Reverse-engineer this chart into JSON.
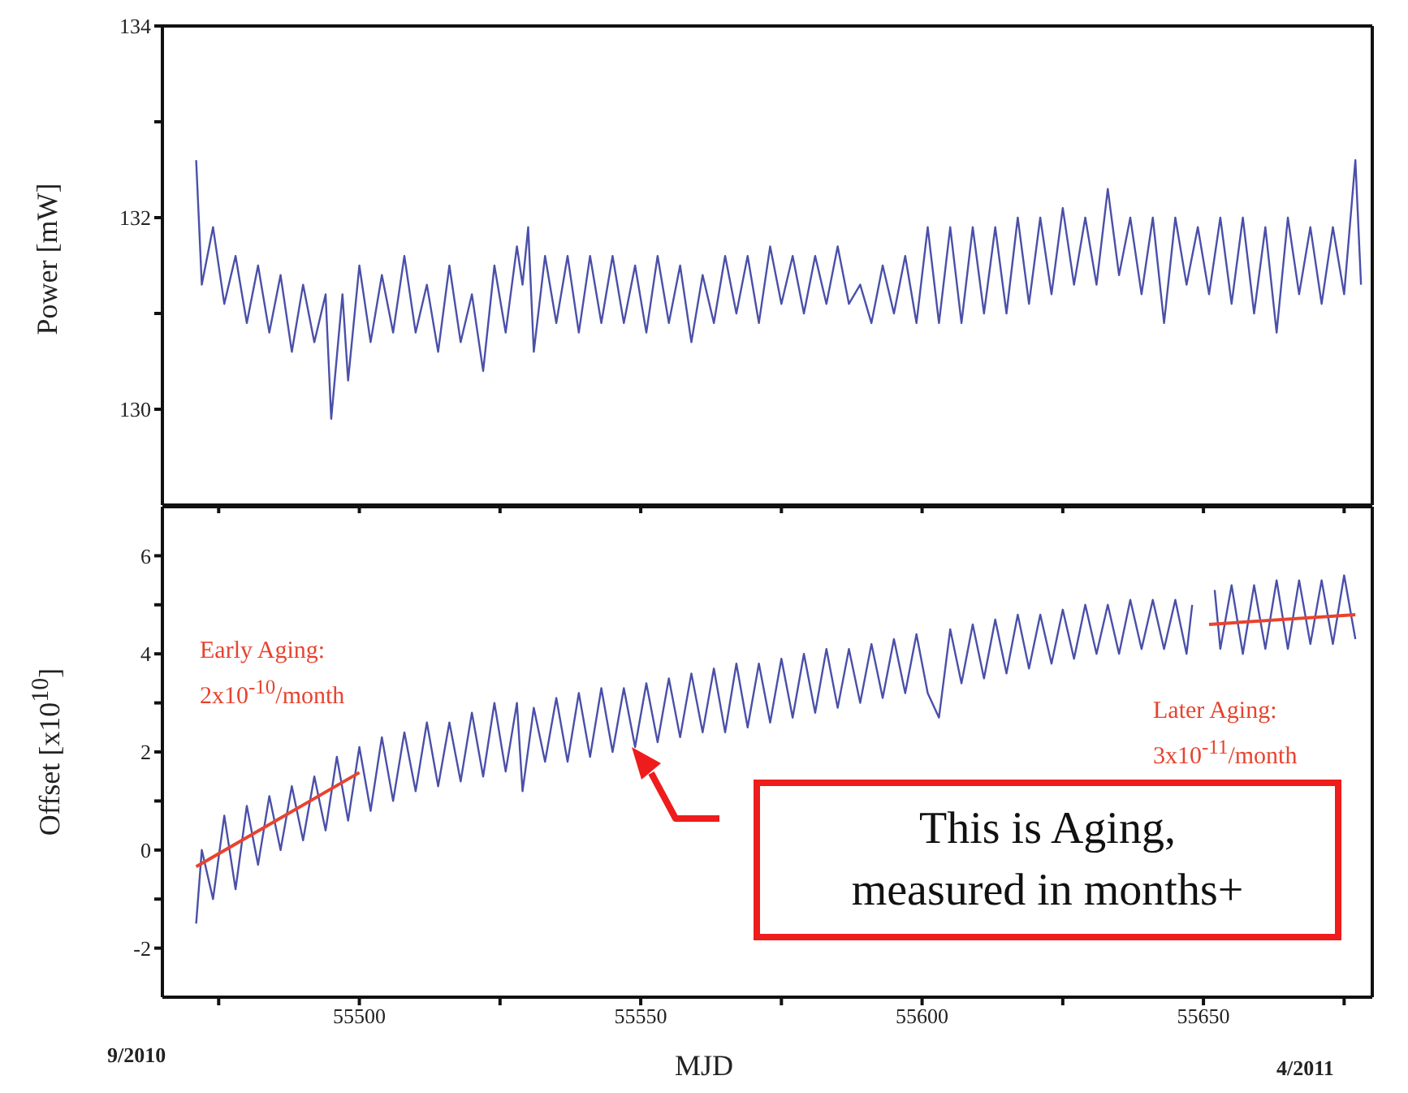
{
  "chart_data": [
    {
      "type": "line",
      "ylabel": "Power [mW]",
      "xlim": [
        55465,
        55680
      ],
      "xticks": [
        {
          "value": 55475,
          "label": null
        },
        55500,
        {
          "value": 55525,
          "label": null
        },
        55550,
        {
          "value": 55575,
          "label": null
        },
        55600,
        {
          "value": 55625,
          "label": null
        },
        55650,
        {
          "value": 55675,
          "label": null
        }
      ],
      "ylim": [
        129,
        134
      ],
      "yticks": [
        130,
        {
          "value": 131,
          "label": null
        },
        132,
        {
          "value": 133,
          "label": null
        },
        134
      ],
      "tick_labels": "y",
      "marker": "none",
      "series": [
        {
          "color": "#4a50a8",
          "x": [
            55471,
            55472,
            55474,
            55476,
            55478,
            55480,
            55482,
            55484,
            55486,
            55488,
            55490,
            55492,
            55494,
            55495,
            55497,
            55498,
            55500,
            55502,
            55504,
            55506,
            55508,
            55510,
            55512,
            55514,
            55516,
            55518,
            55520,
            55522,
            55524,
            55526,
            55528,
            55529,
            55530,
            55531,
            55533,
            55535,
            55537,
            55539,
            55541,
            55543,
            55545,
            55547,
            55549,
            55551,
            55553,
            55555,
            55557,
            55559,
            55561,
            55563,
            55565,
            55567,
            55569,
            55571,
            55573,
            55575,
            55577,
            55579,
            55581,
            55583,
            55585,
            55587,
            55589,
            55591,
            55593,
            55595,
            55597,
            55599,
            55601,
            55603,
            55605,
            55607,
            55609,
            55611,
            55613,
            55615,
            55617,
            55619,
            55621,
            55623,
            55625,
            55627,
            55629,
            55631,
            55633,
            55635,
            55637,
            55639,
            55641,
            55643,
            55645,
            55647,
            55649,
            55651,
            55653,
            55655,
            55657,
            55659,
            55661,
            55663,
            55665,
            55667,
            55669,
            55671,
            55673,
            55675,
            55677,
            55678
          ],
          "values": [
            132.6,
            131.3,
            131.9,
            131.1,
            131.6,
            130.9,
            131.5,
            130.8,
            131.4,
            130.6,
            131.3,
            130.7,
            131.2,
            129.9,
            131.2,
            130.3,
            131.5,
            130.7,
            131.4,
            130.8,
            131.6,
            130.8,
            131.3,
            130.6,
            131.5,
            130.7,
            131.2,
            130.4,
            131.5,
            130.8,
            131.7,
            131.3,
            131.9,
            130.6,
            131.6,
            130.9,
            131.6,
            130.8,
            131.6,
            130.9,
            131.6,
            130.9,
            131.5,
            130.8,
            131.6,
            130.9,
            131.5,
            130.7,
            131.4,
            130.9,
            131.6,
            131.0,
            131.6,
            130.9,
            131.7,
            131.1,
            131.6,
            131.0,
            131.6,
            131.1,
            131.7,
            131.1,
            131.3,
            130.9,
            131.5,
            131.0,
            131.6,
            130.9,
            131.9,
            130.9,
            131.9,
            130.9,
            131.9,
            131.0,
            131.9,
            131.0,
            132.0,
            131.1,
            132.0,
            131.2,
            132.1,
            131.3,
            132.0,
            131.3,
            132.3,
            131.4,
            132.0,
            131.2,
            132.0,
            130.9,
            132.0,
            131.3,
            131.9,
            131.2,
            132.0,
            131.1,
            132.0,
            131.0,
            131.9,
            130.8,
            132.0,
            131.2,
            131.9,
            131.1,
            131.9,
            131.2,
            132.6,
            131.3
          ]
        }
      ]
    },
    {
      "type": "line",
      "xlabel": "MJD",
      "ylabel": "Offset [x10$^{10}$]",
      "xlim": [
        55465,
        55680
      ],
      "xticks": [
        {
          "value": 55475,
          "label": null
        },
        55500,
        {
          "value": 55525,
          "label": null
        },
        55550,
        {
          "value": 55575,
          "label": null
        },
        55600,
        {
          "value": 55625,
          "label": null
        },
        55650,
        {
          "value": 55675,
          "label": null
        }
      ],
      "ylim": [
        -3,
        7
      ],
      "yticks": [
        -2,
        {
          "value": -1,
          "label": null
        },
        0,
        {
          "value": 1,
          "label": null
        },
        2,
        {
          "value": 3,
          "label": null
        },
        4,
        {
          "value": 5,
          "label": null
        },
        6
      ],
      "marker": "none",
      "annotations": [
        "Early Aging:",
        "2x10$^{-10}$/month",
        "Later Aging:",
        "3x10$^{-11}$/month",
        "This is Aging, measured in months+",
        "9/2010",
        "4/2011"
      ],
      "series": [
        {
          "color": "#4a50a8",
          "x": [
            55471,
            55472,
            55474,
            55476,
            55478,
            55480,
            55482,
            55484,
            55486,
            55488,
            55490,
            55492,
            55494,
            55496,
            55498,
            55500,
            55502,
            55504,
            55506,
            55508,
            55510,
            55512,
            55514,
            55516,
            55518,
            55520,
            55522,
            55524,
            55526,
            55528,
            55529,
            55531,
            55533,
            55535,
            55537,
            55539,
            55541,
            55543,
            55545,
            55547,
            55549,
            55551,
            55553,
            55555,
            55557,
            55559,
            55561,
            55563,
            55565,
            55567,
            55569,
            55571,
            55573,
            55575,
            55577,
            55579,
            55581,
            55583,
            55585,
            55587,
            55589,
            55591,
            55593,
            55595,
            55597,
            55599,
            55601,
            55603,
            55605,
            55607,
            55609,
            55611,
            55613,
            55615,
            55617,
            55619,
            55621,
            55623,
            55625,
            55627,
            55629,
            55631,
            55633,
            55635,
            55637,
            55639,
            55641,
            55643,
            55645,
            55647,
            55648,
            55650,
            55652,
            55653,
            55655,
            55657,
            55659,
            55661,
            55663,
            55665,
            55667,
            55669,
            55671,
            55673,
            55675,
            55677
          ],
          "values": [
            -1.5,
            0.0,
            -1.0,
            0.7,
            -0.8,
            0.9,
            -0.3,
            1.1,
            0.0,
            1.3,
            0.2,
            1.5,
            0.4,
            1.9,
            0.6,
            2.1,
            0.8,
            2.3,
            1.0,
            2.4,
            1.2,
            2.6,
            1.3,
            2.6,
            1.4,
            2.8,
            1.5,
            3.0,
            1.6,
            3.0,
            1.2,
            2.9,
            1.8,
            3.1,
            1.8,
            3.2,
            1.9,
            3.3,
            2.0,
            3.3,
            2.1,
            3.4,
            2.2,
            3.5,
            2.3,
            3.6,
            2.4,
            3.7,
            2.4,
            3.8,
            2.5,
            3.8,
            2.6,
            3.9,
            2.7,
            4.0,
            2.8,
            4.1,
            2.9,
            4.1,
            3.0,
            4.2,
            3.1,
            4.3,
            3.2,
            4.4,
            3.2,
            2.7,
            4.5,
            3.4,
            4.6,
            3.5,
            4.7,
            3.6,
            4.8,
            3.7,
            4.8,
            3.8,
            4.9,
            3.9,
            5.0,
            4.0,
            5.0,
            4.0,
            5.1,
            4.1,
            5.1,
            4.1,
            5.1,
            4.0,
            5.0,
            null,
            5.3,
            4.1,
            5.4,
            4.0,
            5.4,
            4.1,
            5.5,
            4.1,
            5.5,
            4.2,
            5.5,
            4.2,
            5.6,
            4.3
          ]
        },
        {
          "type": "line",
          "color": "#e8432f",
          "x": [
            55471,
            55500
          ],
          "values": [
            -0.34,
            1.58
          ]
        },
        {
          "type": "line",
          "color": "#e8432f",
          "x": [
            55651,
            55677
          ],
          "values": [
            4.6,
            4.8
          ]
        }
      ]
    }
  ]
}
